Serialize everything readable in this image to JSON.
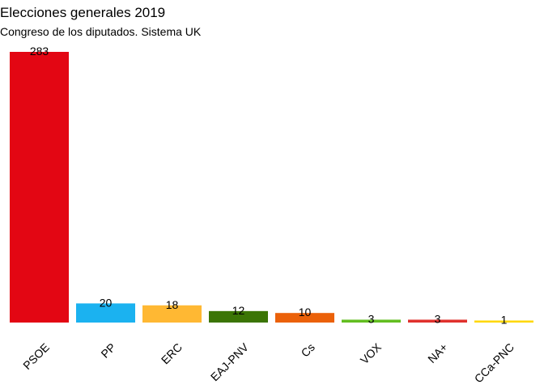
{
  "chart_data": {
    "type": "bar",
    "title": "Elecciones generales 2019",
    "subtitle": "Congreso de los diputados. Sistema UK",
    "xlabel": "",
    "ylabel": "",
    "categories": [
      "PSOE",
      "PP",
      "ERC",
      "EAJ-PNV",
      "Cs",
      "VOX",
      "NA+",
      "CCa-PNC"
    ],
    "values": [
      283,
      20,
      18,
      12,
      10,
      3,
      3,
      1
    ],
    "colors": [
      "#e30613",
      "#1bb2f0",
      "#ffb833",
      "#3b7505",
      "#eb6109",
      "#63be21",
      "#e0312d",
      "#ffd800"
    ],
    "ylim": [
      0,
      283
    ],
    "grid": false,
    "legend": "none"
  }
}
